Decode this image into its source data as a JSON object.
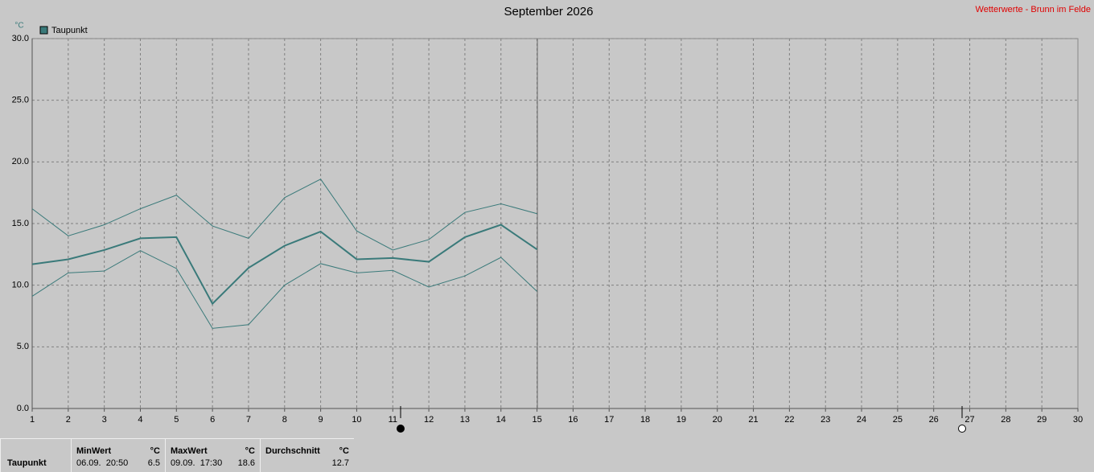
{
  "chart_data": {
    "type": "line",
    "title": "September 2026",
    "source": "Wetterwerte - Brunn im Felde",
    "y_unit": "°C",
    "x": [
      1,
      2,
      3,
      4,
      5,
      6,
      7,
      8,
      9,
      10,
      11,
      12,
      13,
      14,
      15
    ],
    "xlim": [
      1,
      30
    ],
    "xticks": [
      1,
      2,
      3,
      4,
      5,
      6,
      7,
      8,
      9,
      10,
      11,
      12,
      13,
      14,
      15,
      16,
      17,
      18,
      19,
      20,
      21,
      22,
      23,
      24,
      25,
      26,
      27,
      28,
      29,
      30
    ],
    "ylim": [
      0,
      30
    ],
    "yticks": [
      {
        "value": 0,
        "label": "0.0"
      },
      {
        "value": 5,
        "label": "5.0"
      },
      {
        "value": 10,
        "label": "10.0"
      },
      {
        "value": 15,
        "label": "15.0"
      },
      {
        "value": 20,
        "label": "20.0"
      },
      {
        "value": 25,
        "label": "25.0"
      },
      {
        "value": 30,
        "label": "30.0"
      }
    ],
    "grid": true,
    "series": [
      {
        "name": "Taupunkt",
        "color": "#3a7a7a",
        "width": 2,
        "values": [
          11.7,
          12.1,
          12.85,
          13.8,
          13.9,
          8.5,
          11.4,
          13.2,
          14.35,
          12.1,
          12.2,
          11.9,
          13.9,
          14.9,
          12.9
        ]
      },
      {
        "color": "#3a7a7a",
        "width": 1,
        "values": [
          16.2,
          14.0,
          14.9,
          16.2,
          17.3,
          14.8,
          13.8,
          17.1,
          18.6,
          14.4,
          12.85,
          13.7,
          15.9,
          16.6,
          15.8
        ]
      },
      {
        "color": "#3a7a7a",
        "width": 1,
        "values": [
          9.1,
          11.0,
          11.15,
          12.8,
          11.35,
          6.5,
          6.8,
          10.0,
          11.75,
          11.0,
          11.2,
          9.85,
          10.75,
          12.25,
          9.5
        ]
      }
    ]
  },
  "stats": {
    "label": "Taupunkt",
    "columns": [
      {
        "title": "MinWert",
        "unit": "°C",
        "time": "06.09.  20:50",
        "value": 6.5
      },
      {
        "title": "MaxWert",
        "unit": "°C",
        "time": "09.09.  17:30",
        "value": 18.6
      },
      {
        "title": "Durchschnitt",
        "unit": "°C",
        "value": 12.7
      }
    ]
  }
}
